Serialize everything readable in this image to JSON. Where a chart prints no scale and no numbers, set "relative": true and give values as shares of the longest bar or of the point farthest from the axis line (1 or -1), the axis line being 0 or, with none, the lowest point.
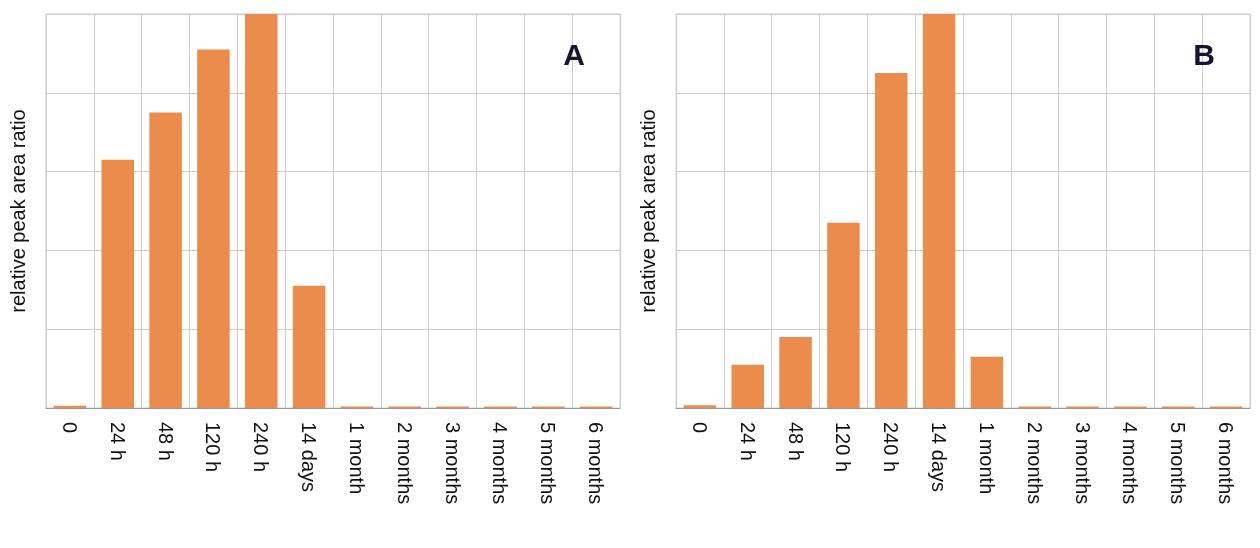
{
  "chart_data": [
    {
      "type": "bar",
      "title": "A",
      "ylabel": "relative peak area ratio",
      "relative": true,
      "grid": true,
      "color": "#ec8c4c",
      "categories": [
        "0",
        "24 h",
        "48 h",
        "120 h",
        "240 h",
        "14 days",
        "1 month",
        "2 months",
        "3 months",
        "4 months",
        "5 months",
        "6 months"
      ],
      "values": [
        0.006,
        0.63,
        0.75,
        0.91,
        1,
        0.31,
        0.004,
        0.004,
        0.004,
        0.004,
        0.004,
        0.004
      ]
    },
    {
      "type": "bar",
      "title": "B",
      "ylabel": "relative peak area ratio",
      "relative": true,
      "grid": true,
      "color": "#ec8c4c",
      "categories": [
        "0",
        "24 h",
        "48 h",
        "120 h",
        "240 h",
        "14 days",
        "1 month",
        "2 months",
        "3 months",
        "4 months",
        "5 months",
        "6 months"
      ],
      "values": [
        0.007,
        0.11,
        0.18,
        0.47,
        0.85,
        1,
        0.13,
        0.004,
        0.004,
        0.004,
        0.004,
        0.004
      ]
    }
  ]
}
